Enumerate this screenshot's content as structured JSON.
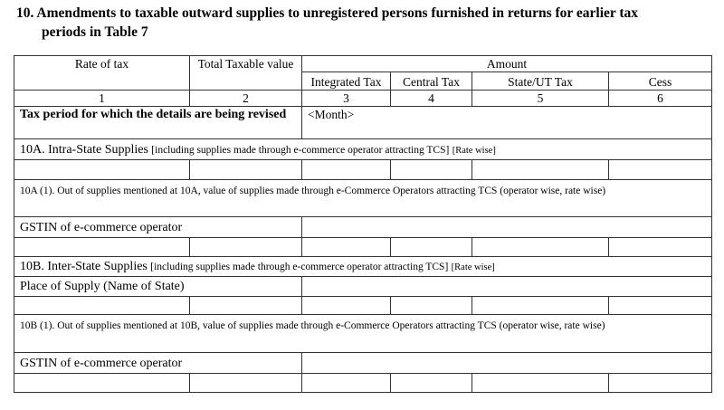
{
  "title": {
    "line1": "10. Amendments to taxable outward supplies to unregistered persons furnished in returns for earlier tax",
    "line2": "periods in Table 7"
  },
  "headers": {
    "rate_of_tax": "Rate of tax",
    "total_taxable_value": "Total Taxable value",
    "amount": "Amount",
    "integrated_tax": "Integrated Tax",
    "central_tax": "Central Tax",
    "state_ut_tax": "State/UT Tax",
    "cess": "Cess",
    "numbers": [
      "1",
      "2",
      "3",
      "4",
      "5",
      "6"
    ]
  },
  "rows": {
    "tax_period_label": "Tax period for which the details are being revised",
    "tax_period_value": "<Month>",
    "s10a_main": "10A. Intra-State Supplies",
    "s10a_bracket": "[including supplies made through e-commerce operator attracting TCS]",
    "s10a_ratewise": "[Rate wise]",
    "s10a1": "10A (1). Out of supplies mentioned at 10A, value of supplies made through  e-Commerce Operators attracting TCS (operator wise, rate wise)",
    "gstin_label_a": "GSTIN of e-commerce operator",
    "s10b_main": "10B.  Inter-State Supplies",
    "s10b_bracket": "[including supplies made through e-commerce operator attracting TCS]",
    "s10b_ratewise": "[Rate wise]",
    "place_of_supply": "Place of  Supply (Name of  State)",
    "s10b1": "10B (1). Out of supplies mentioned at 10B, value of supplies made through  e-Commerce Operators attracting TCS (operator wise, rate wise)",
    "gstin_label_b": "GSTIN of e-commerce operator"
  }
}
